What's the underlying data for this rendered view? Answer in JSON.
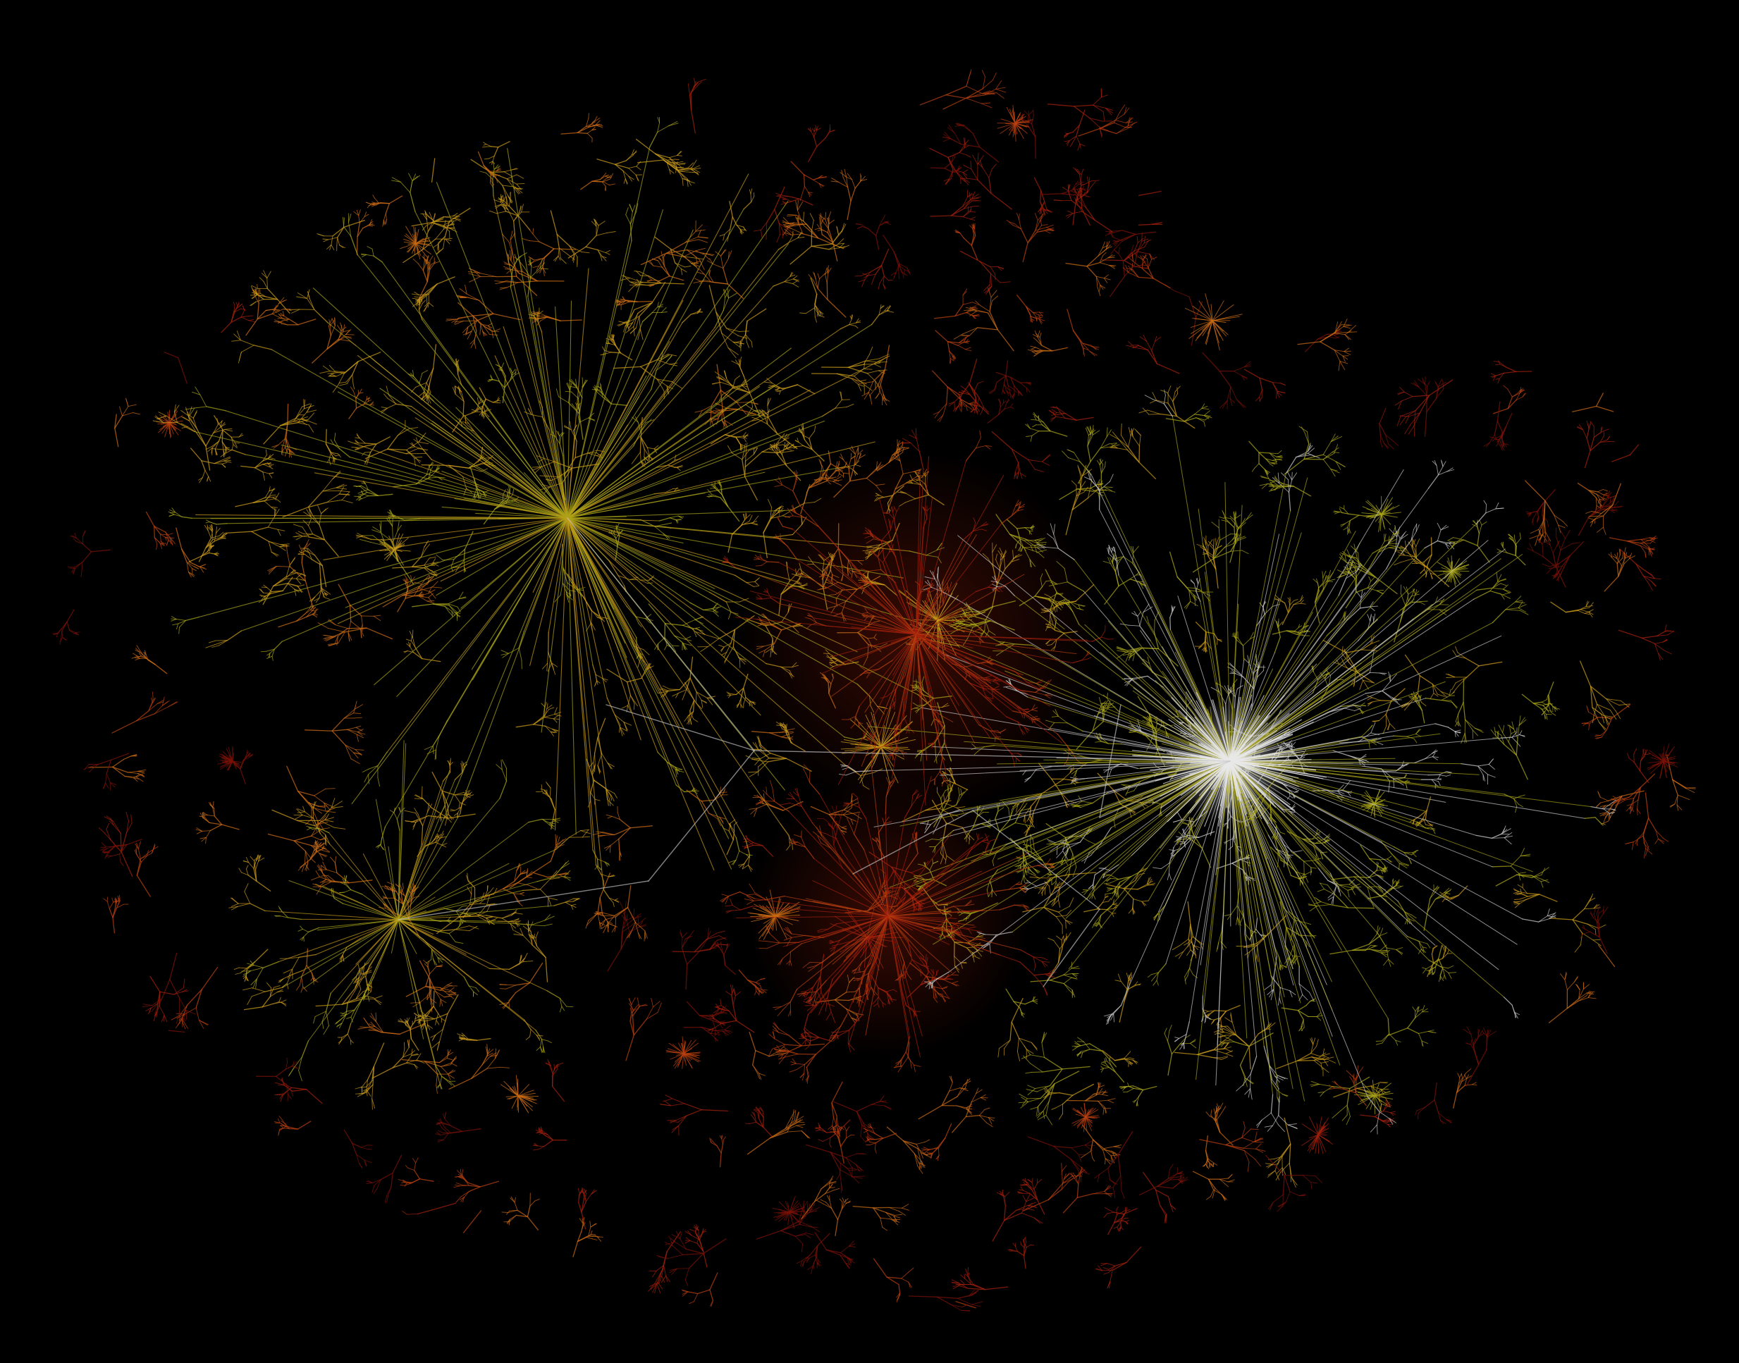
{
  "image": {
    "kind": "network-graph-visualization",
    "background_color": "#000000",
    "palette": {
      "dark_red": "#7a1208",
      "red": "#a3200c",
      "orange_red": "#b8400f",
      "orange": "#c86a14",
      "amber": "#c89a1a",
      "yellow_green": "#a8a418",
      "pale_gray": "#c8c8c8",
      "white": "#e8e8e8"
    },
    "hubs": [
      {
        "name": "upper-left-hub",
        "color": "yellow_green",
        "size_rank": 2
      },
      {
        "name": "right-core-hub",
        "color": "pale_gray",
        "size_rank": 1
      },
      {
        "name": "lower-left-hub",
        "color": "yellow_green",
        "size_rank": 3
      },
      {
        "name": "center-red-cluster",
        "color": "red",
        "size_rank": 4
      },
      {
        "name": "lower-center-red-cluster",
        "color": "orange_red",
        "size_rank": 5
      }
    ]
  }
}
